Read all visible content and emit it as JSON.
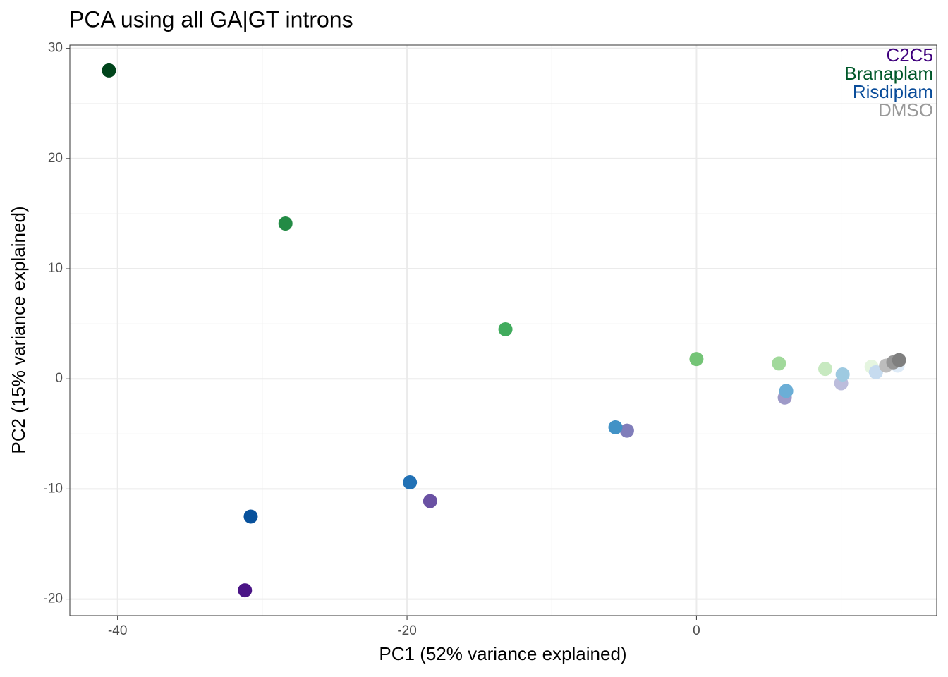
{
  "chart_data": {
    "type": "scatter",
    "title": "PCA using all GA|GT introns",
    "x_label": "PC1 (52% variance explained)",
    "y_label": "PC2 (15% variance explained)",
    "xlim": [
      -43.3,
      16.6
    ],
    "ylim": [
      -21.5,
      30.3
    ],
    "xticks": [
      -40,
      -20,
      0
    ],
    "yticks": [
      -20,
      -10,
      0,
      10,
      20,
      30
    ],
    "xminor_ticks": [
      -30,
      -10,
      10
    ],
    "yminor_ticks": [
      -15,
      -5,
      5,
      15,
      25
    ],
    "grid": true,
    "legend": "top-right",
    "series": [
      {
        "name": "C2C5",
        "color": "#3f007d",
        "x": [
          -31.2,
          -18.4,
          -4.8,
          6.1,
          10.0
        ],
        "values": [
          -19.2,
          -11.1,
          -4.7,
          -1.7,
          -0.4
        ],
        "colors": [
          "#4a1486",
          "#6a51a3",
          "#807dba",
          "#9e9ac8",
          "#bcbddc"
        ]
      },
      {
        "name": "Branaplam",
        "color": "#00582a",
        "x": [
          -40.6,
          -28.4,
          -13.2,
          0.0,
          5.7,
          8.9,
          12.1
        ],
        "values": [
          28.0,
          14.1,
          4.5,
          1.8,
          1.4,
          0.9,
          1.1
        ],
        "colors": [
          "#00441b",
          "#238b45",
          "#41ab5d",
          "#74c476",
          "#a1d99b",
          "#c7e9c0",
          "#e5f5e0"
        ]
      },
      {
        "name": "Risdiplam",
        "color": "#0b4d9a",
        "x": [
          -30.8,
          -19.8,
          -5.6,
          6.2,
          10.1,
          12.4,
          13.9
        ],
        "values": [
          -12.5,
          -9.4,
          -4.4,
          -1.1,
          0.4,
          0.6,
          1.2
        ],
        "colors": [
          "#08519c",
          "#2171b5",
          "#4292c6",
          "#6baed6",
          "#9ecae1",
          "#c6dbef",
          "#deebf7"
        ]
      },
      {
        "name": "DMSO",
        "color": "#999999",
        "x": [
          13.1,
          13.6,
          14.0
        ],
        "values": [
          1.2,
          1.5,
          1.7
        ],
        "colors": [
          "#bdbdbd",
          "#969696",
          "#7f7f7f"
        ]
      }
    ]
  }
}
